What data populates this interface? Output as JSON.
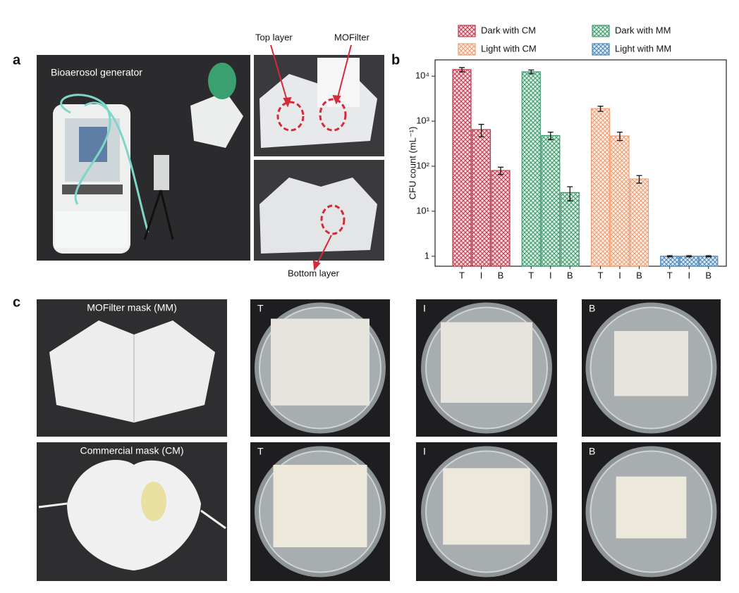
{
  "panel_labels": [
    "a",
    "b",
    "c"
  ],
  "panel_a": {
    "title": "Bioaerosol generator",
    "top_layer": "Top layer",
    "mofilter": "MOFilter",
    "bottom_layer": "Bottom layer"
  },
  "panel_c": {
    "rows": [
      {
        "label": "MOFilter mask (MM)",
        "plates": [
          "T",
          "I",
          "B"
        ]
      },
      {
        "label": "Commercial mask (CM)",
        "plates": [
          "T",
          "I",
          "B"
        ]
      }
    ]
  },
  "chart_data": {
    "type": "bar",
    "y_label": "CFU count (mL⁻¹)",
    "log_scale": true,
    "categories": [
      "T",
      "I",
      "B"
    ],
    "series": [
      {
        "name": "Dark with CM",
        "color": "#c23a4c",
        "values": [
          14000,
          650,
          80
        ],
        "errors": [
          1500,
          200,
          15
        ]
      },
      {
        "name": "Dark with MM",
        "color": "#3d9a6c",
        "values": [
          12500,
          480,
          26
        ],
        "errors": [
          1200,
          90,
          9
        ]
      },
      {
        "name": "Light with CM",
        "color": "#ee9e72",
        "values": [
          1900,
          470,
          52
        ],
        "errors": [
          250,
          100,
          10
        ]
      },
      {
        "name": "Light with MM",
        "color": "#4a86b8",
        "values": [
          1,
          1,
          1
        ],
        "errors": [
          0.03,
          0.03,
          0.03
        ]
      }
    ],
    "ylim": [
      0.6,
      23000
    ],
    "yticks": [
      1,
      {
        "value": 10,
        "label": "10¹"
      },
      {
        "value": 100,
        "label": "10²"
      },
      {
        "value": 1000,
        "label": "10³"
      },
      {
        "value": 10000,
        "label": "10⁴"
      }
    ]
  }
}
